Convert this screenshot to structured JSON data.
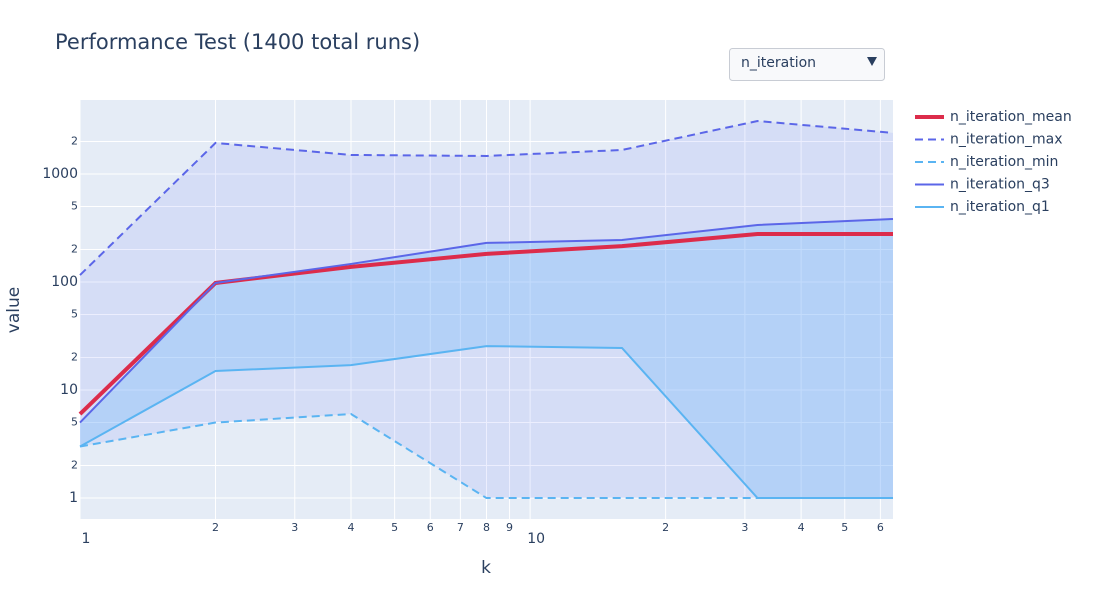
{
  "chart_data": {
    "type": "line",
    "title": "Performance Test (1400 total runs)",
    "x_label": "k",
    "y_label": "value",
    "dropdown": {
      "label": "n_iteration"
    },
    "x": [
      1,
      2,
      4,
      8,
      16,
      32,
      64
    ],
    "xlim": [
      1,
      64
    ],
    "ylim": [
      0.64,
      4840
    ],
    "xlog": true,
    "ylog": true,
    "grid": true,
    "xticks": [
      1,
      2,
      3,
      4,
      5,
      6,
      7,
      8,
      9,
      10,
      {
        "value": 20,
        "label": "2"
      },
      {
        "value": 30,
        "label": "3"
      },
      {
        "value": 40,
        "label": "4"
      },
      {
        "value": 50,
        "label": "5"
      },
      {
        "value": 60,
        "label": "6"
      }
    ],
    "yticks": [
      1,
      2,
      5,
      10,
      {
        "value": 20,
        "label": "2"
      },
      {
        "value": 50,
        "label": "5"
      },
      100,
      {
        "value": 200,
        "label": "2"
      },
      {
        "value": 500,
        "label": "5"
      },
      1000,
      {
        "value": 2000,
        "label": "2"
      }
    ],
    "series": [
      {
        "name": "n_iteration_mean",
        "color": "#dc2c4b",
        "line": "thick",
        "values": [
          6,
          98,
          138,
          182,
          215,
          278,
          278
        ]
      },
      {
        "name": "n_iteration_max",
        "color": "#5b66e8",
        "line": "dash",
        "values": [
          116,
          1937,
          1500,
          1468,
          1668,
          3093,
          2400
        ]
      },
      {
        "name": "n_iteration_min",
        "color": "#5ab4f2",
        "line": "dash",
        "fill": "tonexty",
        "fillcolor": "rgba(110,120,250,0.13)",
        "values": [
          3,
          5,
          6,
          1,
          1,
          1,
          1
        ]
      },
      {
        "name": "n_iteration_q3",
        "color": "#5b66e8",
        "line": "solid",
        "values": [
          5,
          98,
          147,
          230,
          245,
          337,
          383
        ]
      },
      {
        "name": "n_iteration_q1",
        "color": "#5ab4f2",
        "line": "solid",
        "fill": "tonexty",
        "fillcolor": "rgba(120,185,250,0.35)",
        "values": [
          3,
          15,
          17,
          25.5,
          24.5,
          1,
          1
        ]
      }
    ]
  }
}
